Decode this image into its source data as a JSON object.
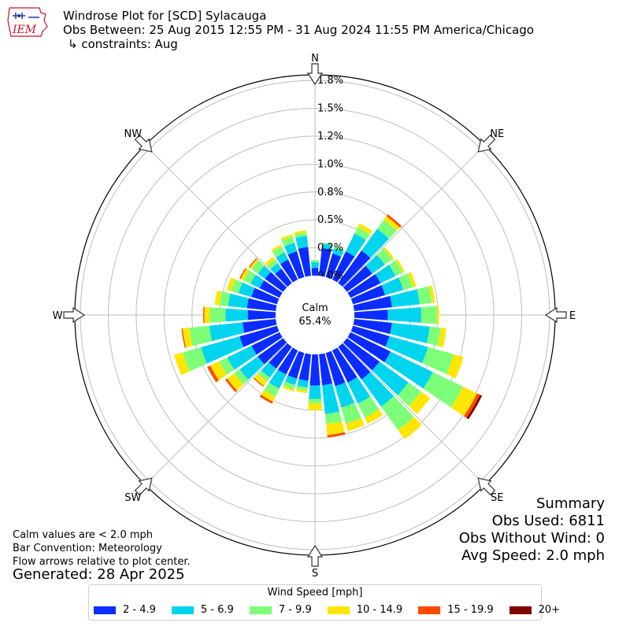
{
  "header": {
    "title": "Windrose Plot for [SCD] Sylacauga",
    "obs_between": "Obs Between: 25 Aug 2015 12:55 PM - 31 Aug 2024 11:55 PM America/Chicago",
    "constraints": "↳ constraints: Aug"
  },
  "logo": {
    "text": "IEM",
    "color": "#c8102e"
  },
  "notes": {
    "calm_def": "Calm values are < 2.0 mph",
    "convention": "Bar Convention: Meteorology",
    "flow": "Flow arrows relative to plot center.",
    "generated": "Generated: 28 Apr 2025"
  },
  "summary": {
    "title": "Summary",
    "obs_used": "Obs Used: 6811",
    "obs_without_wind": "Obs Without Wind: 0",
    "avg_speed": "Avg Speed: 2.0 mph"
  },
  "legend": {
    "title": "Wind Speed [mph]",
    "items": [
      {
        "label": "2 - 4.9",
        "color": "#0b2cff"
      },
      {
        "label": "5 - 6.9",
        "color": "#00d4ee"
      },
      {
        "label": "7 - 9.9",
        "color": "#7dff7a"
      },
      {
        "label": "10 - 14.9",
        "color": "#ffe600"
      },
      {
        "label": "15 - 19.9",
        "color": "#ff4a00"
      },
      {
        "label": "20+",
        "color": "#7f0000"
      }
    ]
  },
  "chart_data": {
    "type": "windrose",
    "calm": {
      "label": "Calm",
      "value": "65.4%"
    },
    "radial_ticks": [
      "0.0%",
      "0.2%",
      "0.5%",
      "0.8%",
      "1.0%",
      "1.2%",
      "1.5%",
      "1.8%"
    ],
    "radial_values": [
      0.0,
      0.25,
      0.5,
      0.75,
      1.0,
      1.25,
      1.5,
      1.75
    ],
    "rmax": 1.8,
    "directions": [
      "N",
      "NE",
      "E",
      "SE",
      "S",
      "SW",
      "W",
      "NW"
    ],
    "unit": "%",
    "bins": [
      "2 - 4.9",
      "5 - 6.9",
      "7 - 9.9",
      "10 - 14.9",
      "15 - 19.9",
      "20+"
    ],
    "sectors": [
      {
        "dir": 0,
        "values": [
          0.07,
          0.05,
          0.02,
          0,
          0,
          0
        ]
      },
      {
        "dir": 10,
        "values": [
          0.25,
          0.04,
          0.01,
          0,
          0,
          0
        ]
      },
      {
        "dir": 20,
        "values": [
          0.22,
          0.05,
          0.02,
          0,
          0,
          0
        ]
      },
      {
        "dir": 30,
        "values": [
          0.28,
          0.18,
          0.06,
          0.04,
          0,
          0
        ]
      },
      {
        "dir": 40,
        "values": [
          0.36,
          0.24,
          0.1,
          0.04,
          0.02,
          0
        ]
      },
      {
        "dir": 50,
        "values": [
          0.28,
          0.14,
          0.08,
          0.02,
          0,
          0
        ]
      },
      {
        "dir": 60,
        "values": [
          0.3,
          0.15,
          0.07,
          0.02,
          0,
          0
        ]
      },
      {
        "dir": 70,
        "values": [
          0.3,
          0.17,
          0.09,
          0.03,
          0,
          0
        ]
      },
      {
        "dir": 80,
        "values": [
          0.34,
          0.25,
          0.11,
          0.03,
          0,
          0
        ]
      },
      {
        "dir": 90,
        "values": [
          0.3,
          0.3,
          0.14,
          0.02,
          0,
          0
        ]
      },
      {
        "dir": 100,
        "values": [
          0.34,
          0.34,
          0.1,
          0.05,
          0,
          0
        ]
      },
      {
        "dir": 110,
        "values": [
          0.34,
          0.36,
          0.24,
          0.09,
          0,
          0
        ]
      },
      {
        "dir": 120,
        "values": [
          0.4,
          0.42,
          0.3,
          0.14,
          0.03,
          0.02
        ]
      },
      {
        "dir": 130,
        "values": [
          0.36,
          0.32,
          0.14,
          0.1,
          0,
          0
        ]
      },
      {
        "dir": 140,
        "values": [
          0.36,
          0.3,
          0.26,
          0.1,
          0,
          0
        ]
      },
      {
        "dir": 150,
        "values": [
          0.32,
          0.21,
          0.14,
          0.06,
          0,
          0
        ]
      },
      {
        "dir": 160,
        "values": [
          0.31,
          0.2,
          0.15,
          0.07,
          0,
          0
        ]
      },
      {
        "dir": 170,
        "values": [
          0.28,
          0.26,
          0.09,
          0.1,
          0.02,
          0
        ]
      },
      {
        "dir": 180,
        "values": [
          0.28,
          0.12,
          0.04,
          0.06,
          0,
          0
        ]
      },
      {
        "dir": 190,
        "values": [
          0.24,
          0.06,
          0.03,
          0.02,
          0,
          0
        ]
      },
      {
        "dir": 200,
        "values": [
          0.24,
          0.06,
          0.04,
          0.02,
          0,
          0
        ]
      },
      {
        "dir": 210,
        "values": [
          0.24,
          0.14,
          0.08,
          0.05,
          0.02,
          0
        ]
      },
      {
        "dir": 220,
        "values": [
          0.24,
          0.1,
          0.04,
          0.05,
          0.01,
          0
        ]
      },
      {
        "dir": 230,
        "values": [
          0.28,
          0.2,
          0.06,
          0.08,
          0.02,
          0
        ]
      },
      {
        "dir": 240,
        "values": [
          0.28,
          0.24,
          0.08,
          0.09,
          0.03,
          0
        ]
      },
      {
        "dir": 250,
        "values": [
          0.35,
          0.36,
          0.17,
          0.08,
          0,
          0
        ]
      },
      {
        "dir": 260,
        "values": [
          0.3,
          0.3,
          0.18,
          0.06,
          0.01,
          0
        ]
      },
      {
        "dir": 270,
        "values": [
          0.25,
          0.2,
          0.14,
          0.05,
          0.01,
          0
        ]
      },
      {
        "dir": 280,
        "values": [
          0.26,
          0.17,
          0.08,
          0.04,
          0,
          0
        ]
      },
      {
        "dir": 290,
        "values": [
          0.24,
          0.12,
          0.07,
          0.04,
          0,
          0
        ]
      },
      {
        "dir": 300,
        "values": [
          0.2,
          0.09,
          0.07,
          0.03,
          0.01,
          0
        ]
      },
      {
        "dir": 310,
        "values": [
          0.2,
          0.08,
          0.07,
          0.02,
          0.01,
          0
        ]
      },
      {
        "dir": 320,
        "values": [
          0.16,
          0.06,
          0.04,
          0.03,
          0,
          0
        ]
      },
      {
        "dir": 330,
        "values": [
          0.2,
          0.07,
          0.06,
          0.02,
          0,
          0
        ]
      },
      {
        "dir": 340,
        "values": [
          0.24,
          0.08,
          0.06,
          0.02,
          0,
          0
        ]
      },
      {
        "dir": 350,
        "values": [
          0.26,
          0.1,
          0.03,
          0.02,
          0,
          0
        ]
      }
    ],
    "title": "Windrose Plot for [SCD] Sylacauga"
  }
}
